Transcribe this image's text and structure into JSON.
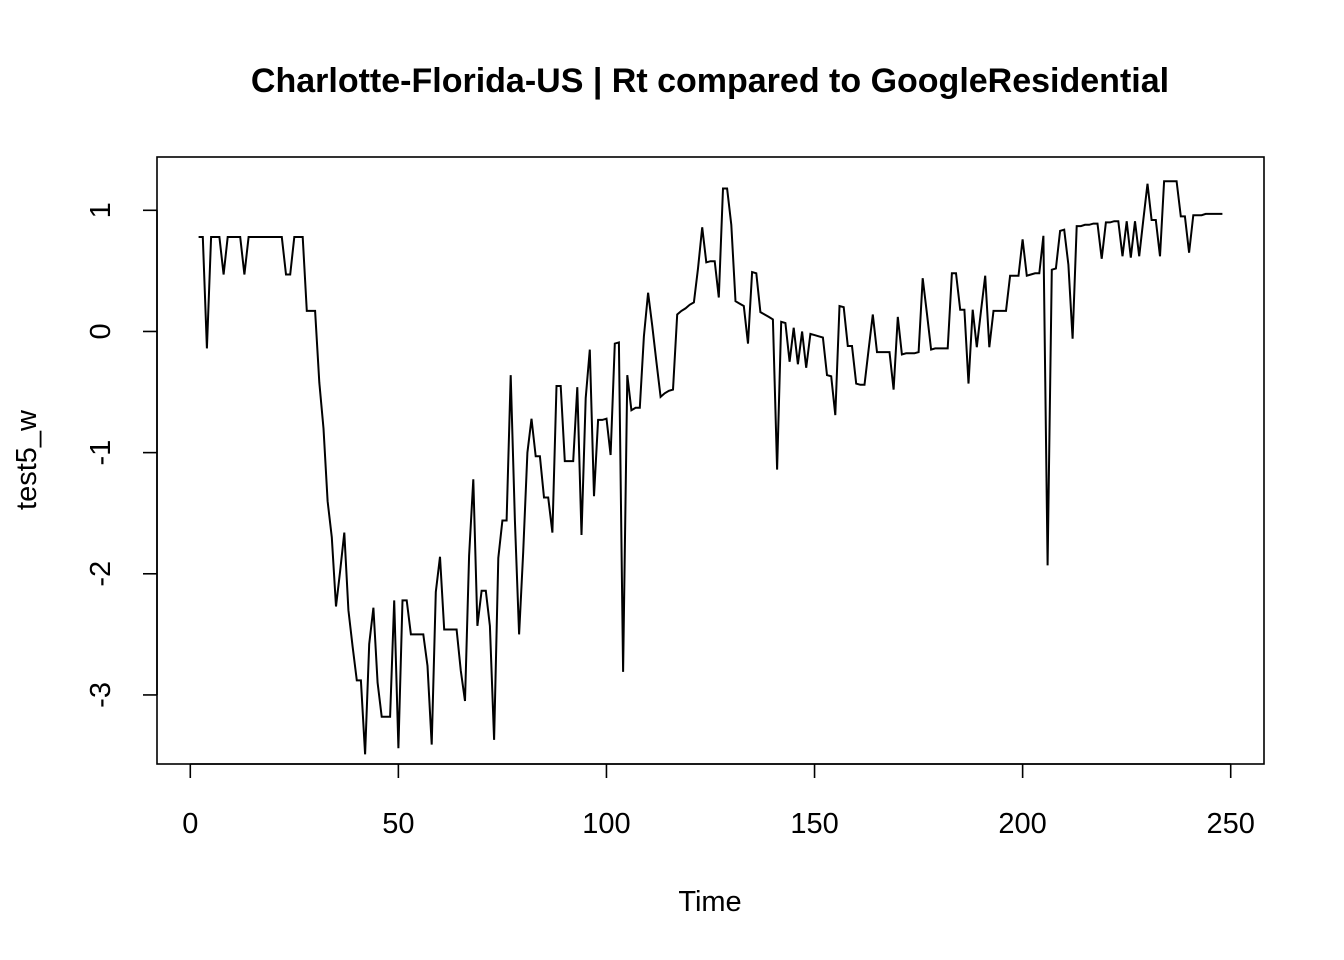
{
  "chart_data": {
    "type": "line",
    "title": "Charlotte-Florida-US | Rt compared to GoogleResidential",
    "xlabel": "Time",
    "ylabel": "test5_w",
    "xlim": [
      -8,
      258
    ],
    "ylim": [
      -3.57,
      1.44
    ],
    "xticks": [
      0,
      50,
      100,
      150,
      200,
      250
    ],
    "yticks": [
      -3,
      -2,
      -1,
      0,
      1
    ],
    "grid": false,
    "series": [
      {
        "points": [
          [
            2,
            0.78
          ],
          [
            3,
            0.78
          ],
          [
            4,
            -0.14
          ],
          [
            5,
            0.78
          ],
          [
            6,
            0.78
          ],
          [
            7,
            0.78
          ],
          [
            8,
            0.47
          ],
          [
            9,
            0.78
          ],
          [
            10,
            0.78
          ],
          [
            11,
            0.78
          ],
          [
            12,
            0.78
          ],
          [
            13,
            0.47
          ],
          [
            14,
            0.78
          ],
          [
            15,
            0.78
          ],
          [
            16,
            0.78
          ],
          [
            17,
            0.78
          ],
          [
            18,
            0.78
          ],
          [
            19,
            0.78
          ],
          [
            20,
            0.78
          ],
          [
            21,
            0.78
          ],
          [
            22,
            0.78
          ],
          [
            23,
            0.47
          ],
          [
            24,
            0.47
          ],
          [
            25,
            0.78
          ],
          [
            26,
            0.78
          ],
          [
            27,
            0.78
          ],
          [
            28,
            0.17
          ],
          [
            29,
            0.17
          ],
          [
            30,
            0.17
          ],
          [
            31,
            -0.42
          ],
          [
            32,
            -0.8
          ],
          [
            33,
            -1.4
          ],
          [
            34,
            -1.7
          ],
          [
            35,
            -2.27
          ],
          [
            36,
            -1.98
          ],
          [
            37,
            -1.66
          ],
          [
            38,
            -2.3
          ],
          [
            39,
            -2.6
          ],
          [
            40,
            -2.88
          ],
          [
            41,
            -2.88
          ],
          [
            42,
            -3.49
          ],
          [
            43,
            -2.58
          ],
          [
            44,
            -2.28
          ],
          [
            45,
            -2.9
          ],
          [
            46,
            -3.18
          ],
          [
            47,
            -3.18
          ],
          [
            48,
            -3.18
          ],
          [
            49,
            -2.22
          ],
          [
            50,
            -3.44
          ],
          [
            51,
            -2.22
          ],
          [
            52,
            -2.22
          ],
          [
            53,
            -2.5
          ],
          [
            54,
            -2.5
          ],
          [
            55,
            -2.5
          ],
          [
            56,
            -2.5
          ],
          [
            57,
            -2.76
          ],
          [
            58,
            -3.41
          ],
          [
            59,
            -2.15
          ],
          [
            60,
            -1.86
          ],
          [
            61,
            -2.46
          ],
          [
            62,
            -2.46
          ],
          [
            63,
            -2.46
          ],
          [
            64,
            -2.46
          ],
          [
            65,
            -2.8
          ],
          [
            66,
            -3.05
          ],
          [
            67,
            -1.85
          ],
          [
            68,
            -1.22
          ],
          [
            69,
            -2.43
          ],
          [
            70,
            -2.14
          ],
          [
            71,
            -2.14
          ],
          [
            72,
            -2.43
          ],
          [
            73,
            -3.37
          ],
          [
            74,
            -1.87
          ],
          [
            75,
            -1.56
          ],
          [
            76,
            -1.56
          ],
          [
            77,
            -0.36
          ],
          [
            78,
            -1.56
          ],
          [
            79,
            -2.5
          ],
          [
            80,
            -1.82
          ],
          [
            81,
            -1.0
          ],
          [
            82,
            -0.72
          ],
          [
            83,
            -1.03
          ],
          [
            84,
            -1.03
          ],
          [
            85,
            -1.37
          ],
          [
            86,
            -1.37
          ],
          [
            87,
            -1.66
          ],
          [
            88,
            -0.45
          ],
          [
            89,
            -0.45
          ],
          [
            90,
            -1.07
          ],
          [
            91,
            -1.07
          ],
          [
            92,
            -1.07
          ],
          [
            93,
            -0.46
          ],
          [
            94,
            -1.68
          ],
          [
            95,
            -0.55
          ],
          [
            96,
            -0.15
          ],
          [
            97,
            -1.36
          ],
          [
            98,
            -0.73
          ],
          [
            99,
            -0.73
          ],
          [
            100,
            -0.72
          ],
          [
            101,
            -1.02
          ],
          [
            102,
            -0.1
          ],
          [
            103,
            -0.09
          ],
          [
            104,
            -2.81
          ],
          [
            105,
            -0.36
          ],
          [
            106,
            -0.65
          ],
          [
            107,
            -0.63
          ],
          [
            108,
            -0.63
          ],
          [
            109,
            -0.04
          ],
          [
            110,
            0.32
          ],
          [
            111,
            0.05
          ],
          [
            112,
            -0.25
          ],
          [
            113,
            -0.54
          ],
          [
            114,
            -0.51
          ],
          [
            115,
            -0.49
          ],
          [
            116,
            -0.48
          ],
          [
            117,
            0.14
          ],
          [
            118,
            0.17
          ],
          [
            119,
            0.19
          ],
          [
            120,
            0.22
          ],
          [
            121,
            0.24
          ],
          [
            122,
            0.52
          ],
          [
            123,
            0.86
          ],
          [
            124,
            0.57
          ],
          [
            125,
            0.58
          ],
          [
            126,
            0.58
          ],
          [
            127,
            0.28
          ],
          [
            128,
            1.18
          ],
          [
            129,
            1.18
          ],
          [
            130,
            0.88
          ],
          [
            131,
            0.25
          ],
          [
            132,
            0.23
          ],
          [
            133,
            0.21
          ],
          [
            134,
            -0.1
          ],
          [
            135,
            0.49
          ],
          [
            136,
            0.48
          ],
          [
            137,
            0.16
          ],
          [
            138,
            0.14
          ],
          [
            139,
            0.12
          ],
          [
            140,
            0.1
          ],
          [
            141,
            -1.14
          ],
          [
            142,
            0.08
          ],
          [
            143,
            0.07
          ],
          [
            144,
            -0.25
          ],
          [
            145,
            0.03
          ],
          [
            146,
            -0.27
          ],
          [
            147,
            0.0
          ],
          [
            148,
            -0.3
          ],
          [
            149,
            -0.02
          ],
          [
            150,
            -0.03
          ],
          [
            151,
            -0.04
          ],
          [
            152,
            -0.05
          ],
          [
            153,
            -0.36
          ],
          [
            154,
            -0.37
          ],
          [
            155,
            -0.69
          ],
          [
            156,
            0.21
          ],
          [
            157,
            0.2
          ],
          [
            158,
            -0.12
          ],
          [
            159,
            -0.12
          ],
          [
            160,
            -0.43
          ],
          [
            161,
            -0.44
          ],
          [
            162,
            -0.44
          ],
          [
            163,
            -0.15
          ],
          [
            164,
            0.14
          ],
          [
            165,
            -0.17
          ],
          [
            166,
            -0.17
          ],
          [
            167,
            -0.17
          ],
          [
            168,
            -0.17
          ],
          [
            169,
            -0.48
          ],
          [
            170,
            0.12
          ],
          [
            171,
            -0.19
          ],
          [
            172,
            -0.18
          ],
          [
            173,
            -0.18
          ],
          [
            174,
            -0.18
          ],
          [
            175,
            -0.17
          ],
          [
            176,
            0.44
          ],
          [
            177,
            0.15
          ],
          [
            178,
            -0.15
          ],
          [
            179,
            -0.14
          ],
          [
            180,
            -0.14
          ],
          [
            181,
            -0.14
          ],
          [
            182,
            -0.14
          ],
          [
            183,
            0.48
          ],
          [
            184,
            0.48
          ],
          [
            185,
            0.18
          ],
          [
            186,
            0.18
          ],
          [
            187,
            -0.43
          ],
          [
            188,
            0.18
          ],
          [
            189,
            -0.13
          ],
          [
            190,
            0.17
          ],
          [
            191,
            0.46
          ],
          [
            192,
            -0.13
          ],
          [
            193,
            0.17
          ],
          [
            194,
            0.17
          ],
          [
            195,
            0.17
          ],
          [
            196,
            0.17
          ],
          [
            197,
            0.46
          ],
          [
            198,
            0.46
          ],
          [
            199,
            0.46
          ],
          [
            200,
            0.76
          ],
          [
            201,
            0.46
          ],
          [
            202,
            0.47
          ],
          [
            203,
            0.48
          ],
          [
            204,
            0.48
          ],
          [
            205,
            0.79
          ],
          [
            206,
            -1.93
          ],
          [
            207,
            0.51
          ],
          [
            208,
            0.52
          ],
          [
            209,
            0.83
          ],
          [
            210,
            0.84
          ],
          [
            211,
            0.55
          ],
          [
            212,
            -0.06
          ],
          [
            213,
            0.87
          ],
          [
            214,
            0.87
          ],
          [
            215,
            0.88
          ],
          [
            216,
            0.88
          ],
          [
            217,
            0.89
          ],
          [
            218,
            0.89
          ],
          [
            219,
            0.6
          ],
          [
            220,
            0.9
          ],
          [
            221,
            0.9
          ],
          [
            222,
            0.91
          ],
          [
            223,
            0.91
          ],
          [
            224,
            0.62
          ],
          [
            225,
            0.91
          ],
          [
            226,
            0.61
          ],
          [
            227,
            0.91
          ],
          [
            228,
            0.62
          ],
          [
            229,
            0.92
          ],
          [
            230,
            1.22
          ],
          [
            231,
            0.92
          ],
          [
            232,
            0.92
          ],
          [
            233,
            0.62
          ],
          [
            234,
            1.24
          ],
          [
            235,
            1.24
          ],
          [
            236,
            1.24
          ],
          [
            237,
            1.24
          ],
          [
            238,
            0.95
          ],
          [
            239,
            0.95
          ],
          [
            240,
            0.65
          ],
          [
            241,
            0.96
          ],
          [
            242,
            0.96
          ],
          [
            243,
            0.96
          ],
          [
            244,
            0.97
          ],
          [
            245,
            0.97
          ],
          [
            246,
            0.97
          ],
          [
            247,
            0.97
          ],
          [
            248,
            0.97
          ]
        ]
      }
    ]
  }
}
